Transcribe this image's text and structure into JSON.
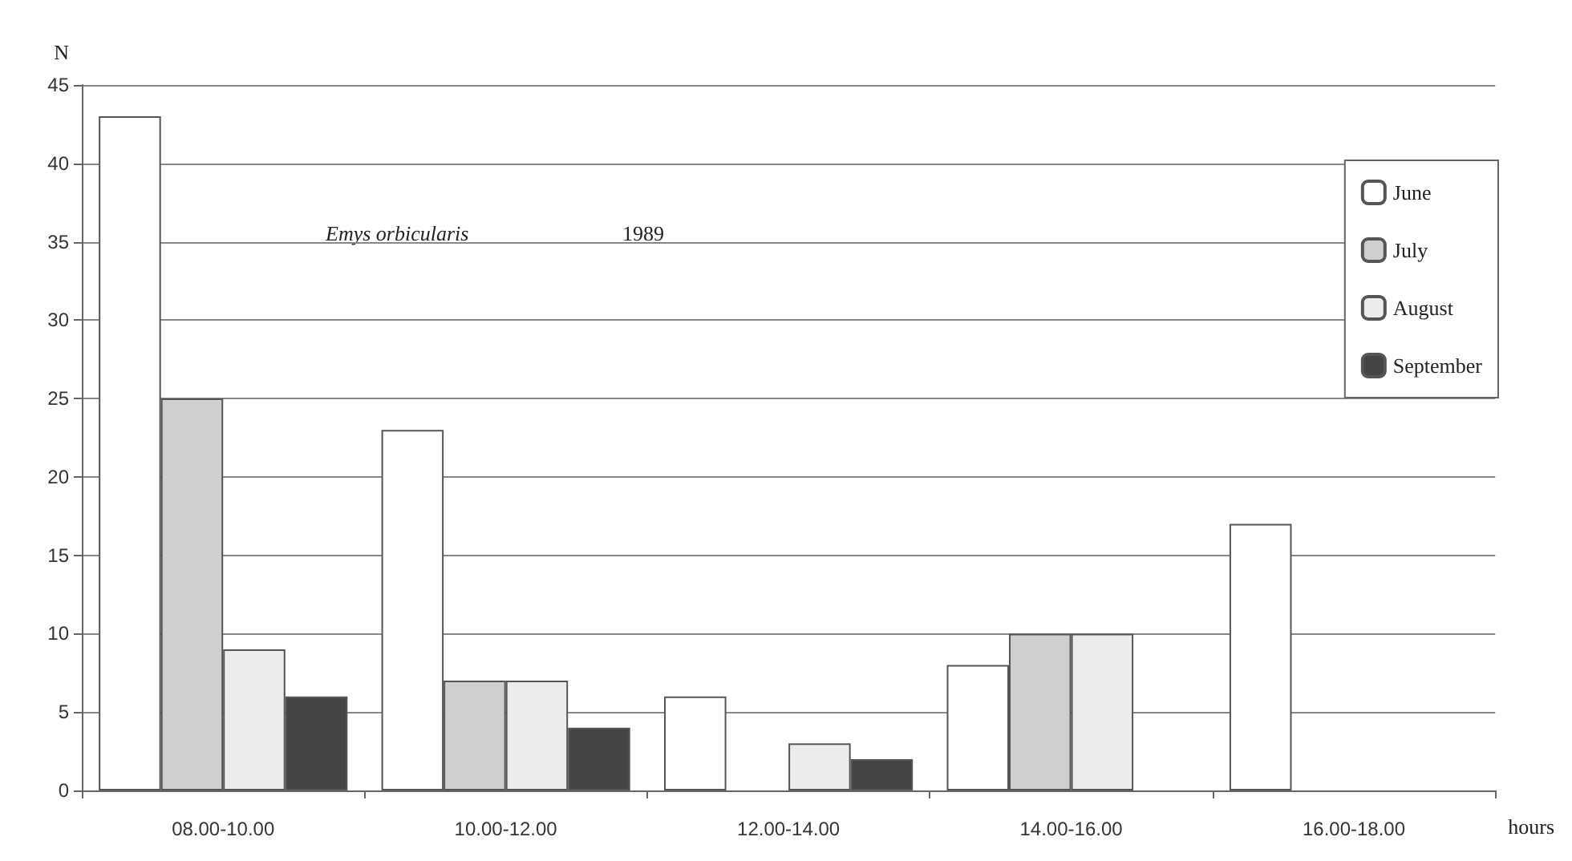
{
  "chart_data": {
    "type": "bar",
    "ylabel": "N",
    "xlabel": "hours",
    "categories": [
      "08.00-10.00",
      "10.00-12.00",
      "12.00-14.00",
      "14.00-16.00",
      "16.00-18.00"
    ],
    "series": [
      {
        "name": "June",
        "color": "#ffffff",
        "values": [
          43,
          23,
          6,
          8,
          17
        ]
      },
      {
        "name": "July",
        "color": "#cfcfcf",
        "values": [
          25,
          7,
          null,
          10,
          null
        ]
      },
      {
        "name": "August",
        "color": "#ececec",
        "values": [
          9,
          7,
          3,
          10,
          null
        ]
      },
      {
        "name": "September",
        "color": "#454545",
        "values": [
          6,
          4,
          2,
          null,
          null
        ]
      }
    ],
    "ylim": [
      0,
      45
    ],
    "yticks": [
      0,
      5,
      10,
      15,
      20,
      25,
      30,
      35,
      40,
      45
    ],
    "annotations": [
      "Emys orbicularis",
      "1989"
    ],
    "grid": "y",
    "legend": "top right"
  }
}
